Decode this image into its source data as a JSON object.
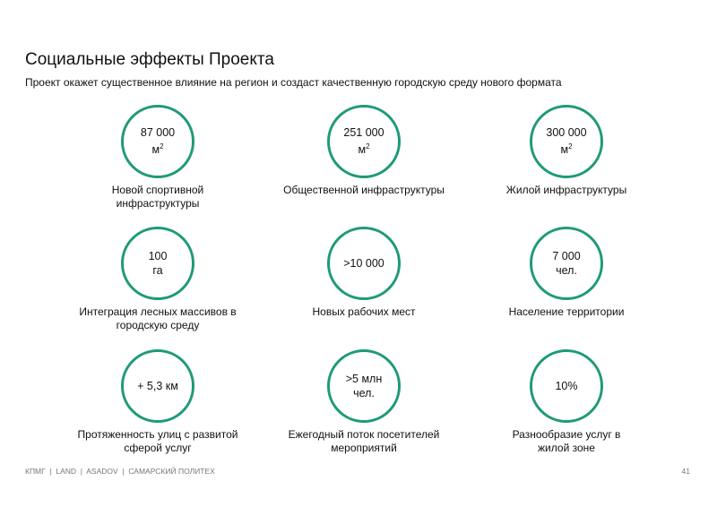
{
  "title": "Социальные эффекты Проекта",
  "subtitle": "Проект окажет существенное влияние на регион и создаст качественную городскую среду нового формата",
  "accent_color": "#1f9a78",
  "metrics": [
    {
      "value": "87 000",
      "unit": "м",
      "sup": "2",
      "label": "Новой спортивной инфраструктуры"
    },
    {
      "value": "251 000",
      "unit": "м",
      "sup": "2",
      "label": "Общественной инфраструктуры"
    },
    {
      "value": "300 000",
      "unit": "м",
      "sup": "2",
      "label": "Жилой инфраструктуры"
    },
    {
      "value": "100",
      "unit": "га",
      "label": "Интеграция лесных массивов в городскую среду"
    },
    {
      "value": ">10 000",
      "label": "Новых рабочих мест"
    },
    {
      "value": "7 000",
      "unit": "чел.",
      "label": "Население территории"
    },
    {
      "value": "+ 5,3 км",
      "label": "Протяженность улиц с развитой сферой услуг"
    },
    {
      "value": ">5 млн",
      "unit": "чел.",
      "label": "Ежегодный поток посетителей мероприятий"
    },
    {
      "value": "10%",
      "label": "Разнообразие услуг в жилой зоне"
    }
  ],
  "footer": "КПМГ  |  LAND  |  ASADOV  |  САМАРСКИЙ ПОЛИТЕХ",
  "page_number": "41"
}
